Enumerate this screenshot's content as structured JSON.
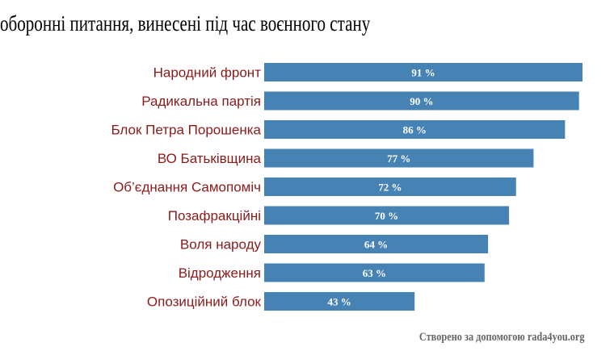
{
  "chart_data": {
    "type": "bar",
    "orientation": "horizontal",
    "title": "оборонні питання, винесені під час воєнного стану",
    "categories": [
      "Народний фронт",
      "Радикальна партія",
      "Блок Петра Порошенка",
      "ВО Батьківщина",
      "Об’єднання Самопоміч",
      "Позафракційні",
      "Воля народу",
      "Відродження",
      "Опозиційний блок"
    ],
    "values": [
      91,
      90,
      86,
      77,
      72,
      70,
      64,
      63,
      43
    ],
    "value_labels": [
      "91 %",
      "90 %",
      "86 %",
      "77 %",
      "72 %",
      "70 %",
      "64 %",
      "63 %",
      "43 %"
    ],
    "xlim": [
      0,
      100
    ],
    "grid": false,
    "bar_color": "#4682b4",
    "label_color": "#8b1a1a"
  },
  "credit": "Створено за допомогою rada4you.org"
}
